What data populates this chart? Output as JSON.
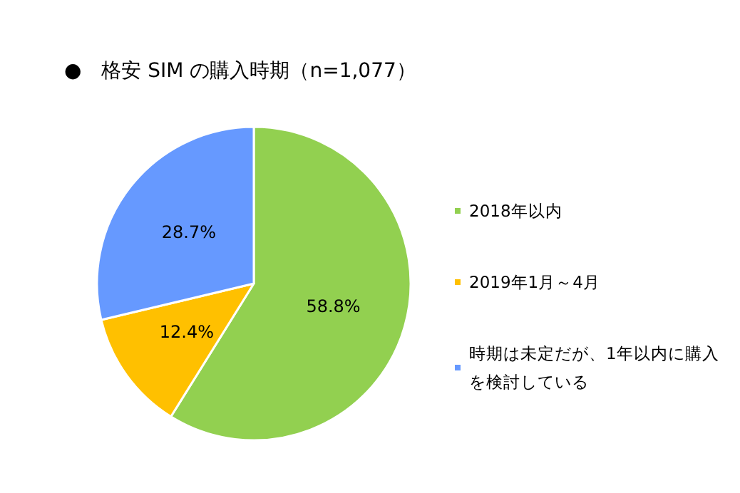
{
  "chart_data": {
    "type": "pie",
    "title": "●　格安 SIM の購入時期（n=1,077）",
    "categories": [
      "2018年以内",
      "2019年1月～4月",
      "時期は未定だが、1年以内に購入を検討している"
    ],
    "values": [
      58.8,
      12.4,
      28.7
    ],
    "colors": [
      "#92d050",
      "#ffc000",
      "#6699ff"
    ],
    "value_labels": [
      "58.8%",
      "12.4%",
      "28.7%"
    ],
    "legend": "right"
  }
}
